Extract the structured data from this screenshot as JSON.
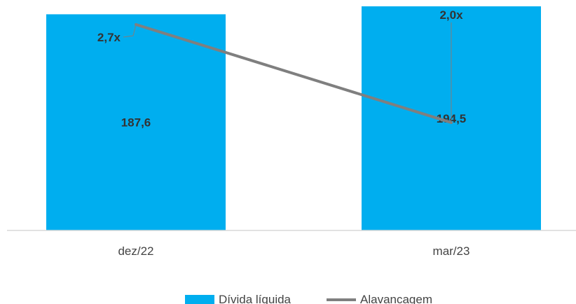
{
  "chart_data": {
    "type": "bar+line",
    "categories": [
      "dez/22",
      "mar/23"
    ],
    "series": [
      {
        "name": "Dívida líquida",
        "type": "bar",
        "values": [
          187.6,
          194.5
        ],
        "labels": [
          "187,6",
          "194,5"
        ],
        "color": "#00aeef"
      },
      {
        "name": "Alavancagem",
        "type": "line",
        "values": [
          2.7,
          2.0
        ],
        "labels": [
          "2,7x",
          "2,0x"
        ],
        "color": "#7f7f7f"
      }
    ],
    "legend_position": "bottom",
    "grid": false,
    "bar_axis_range": [
      0,
      200
    ],
    "line_axis_range": [
      1.6,
      2.8
    ]
  }
}
